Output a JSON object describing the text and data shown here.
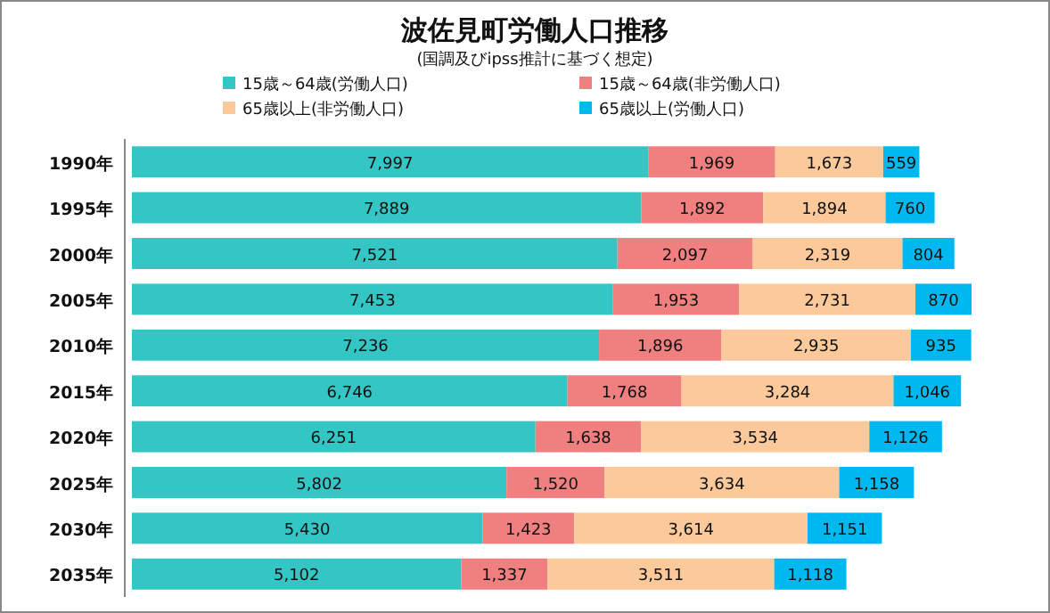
{
  "chart_data": {
    "type": "bar",
    "orientation": "horizontal",
    "stacked": true,
    "title": "波佐見町労働人口推移",
    "subtitle": "(国調及びipss推計に基づく想定)",
    "legend": "top",
    "categories": [
      "1990年",
      "1995年",
      "2000年",
      "2005年",
      "2010年",
      "2015年",
      "2020年",
      "2025年",
      "2030年",
      "2035年"
    ],
    "series": [
      {
        "name": "15歳～64歳(労働人口)",
        "color": "#33c6c4",
        "values": [
          7997,
          7889,
          7521,
          7453,
          7236,
          6746,
          6251,
          5802,
          5430,
          5102
        ],
        "value_labels": [
          "7,997",
          "7,889",
          "7,521",
          "7,453",
          "7,236",
          "6,746",
          "6,251",
          "5,802",
          "5,430",
          "5,102"
        ]
      },
      {
        "name": "15歳～64歳(非労働人口)",
        "color": "#f08080",
        "values": [
          1969,
          1892,
          2097,
          1953,
          1896,
          1768,
          1638,
          1520,
          1423,
          1337
        ],
        "value_labels": [
          "1,969",
          "1,892",
          "2,097",
          "1,953",
          "1,896",
          "1,768",
          "1,638",
          "1,520",
          "1,423",
          "1,337"
        ]
      },
      {
        "name": "65歳以上(非労働人口)",
        "color": "#fbc99a",
        "values": [
          1673,
          1894,
          2319,
          2731,
          2935,
          3284,
          3534,
          3634,
          3614,
          3511
        ],
        "value_labels": [
          "1,673",
          "1,894",
          "2,319",
          "2,731",
          "2,935",
          "3,284",
          "3,534",
          "3,634",
          "3,614",
          "3,511"
        ]
      },
      {
        "name": "65歳以上(労働人口)",
        "color": "#00b8f0",
        "values": [
          559,
          760,
          804,
          870,
          935,
          1046,
          1126,
          1158,
          1151,
          1118
        ],
        "value_labels": [
          "559",
          "760",
          "804",
          "870",
          "935",
          "1,046",
          "1,126",
          "1,158",
          "1,151",
          "1,118"
        ]
      }
    ]
  }
}
